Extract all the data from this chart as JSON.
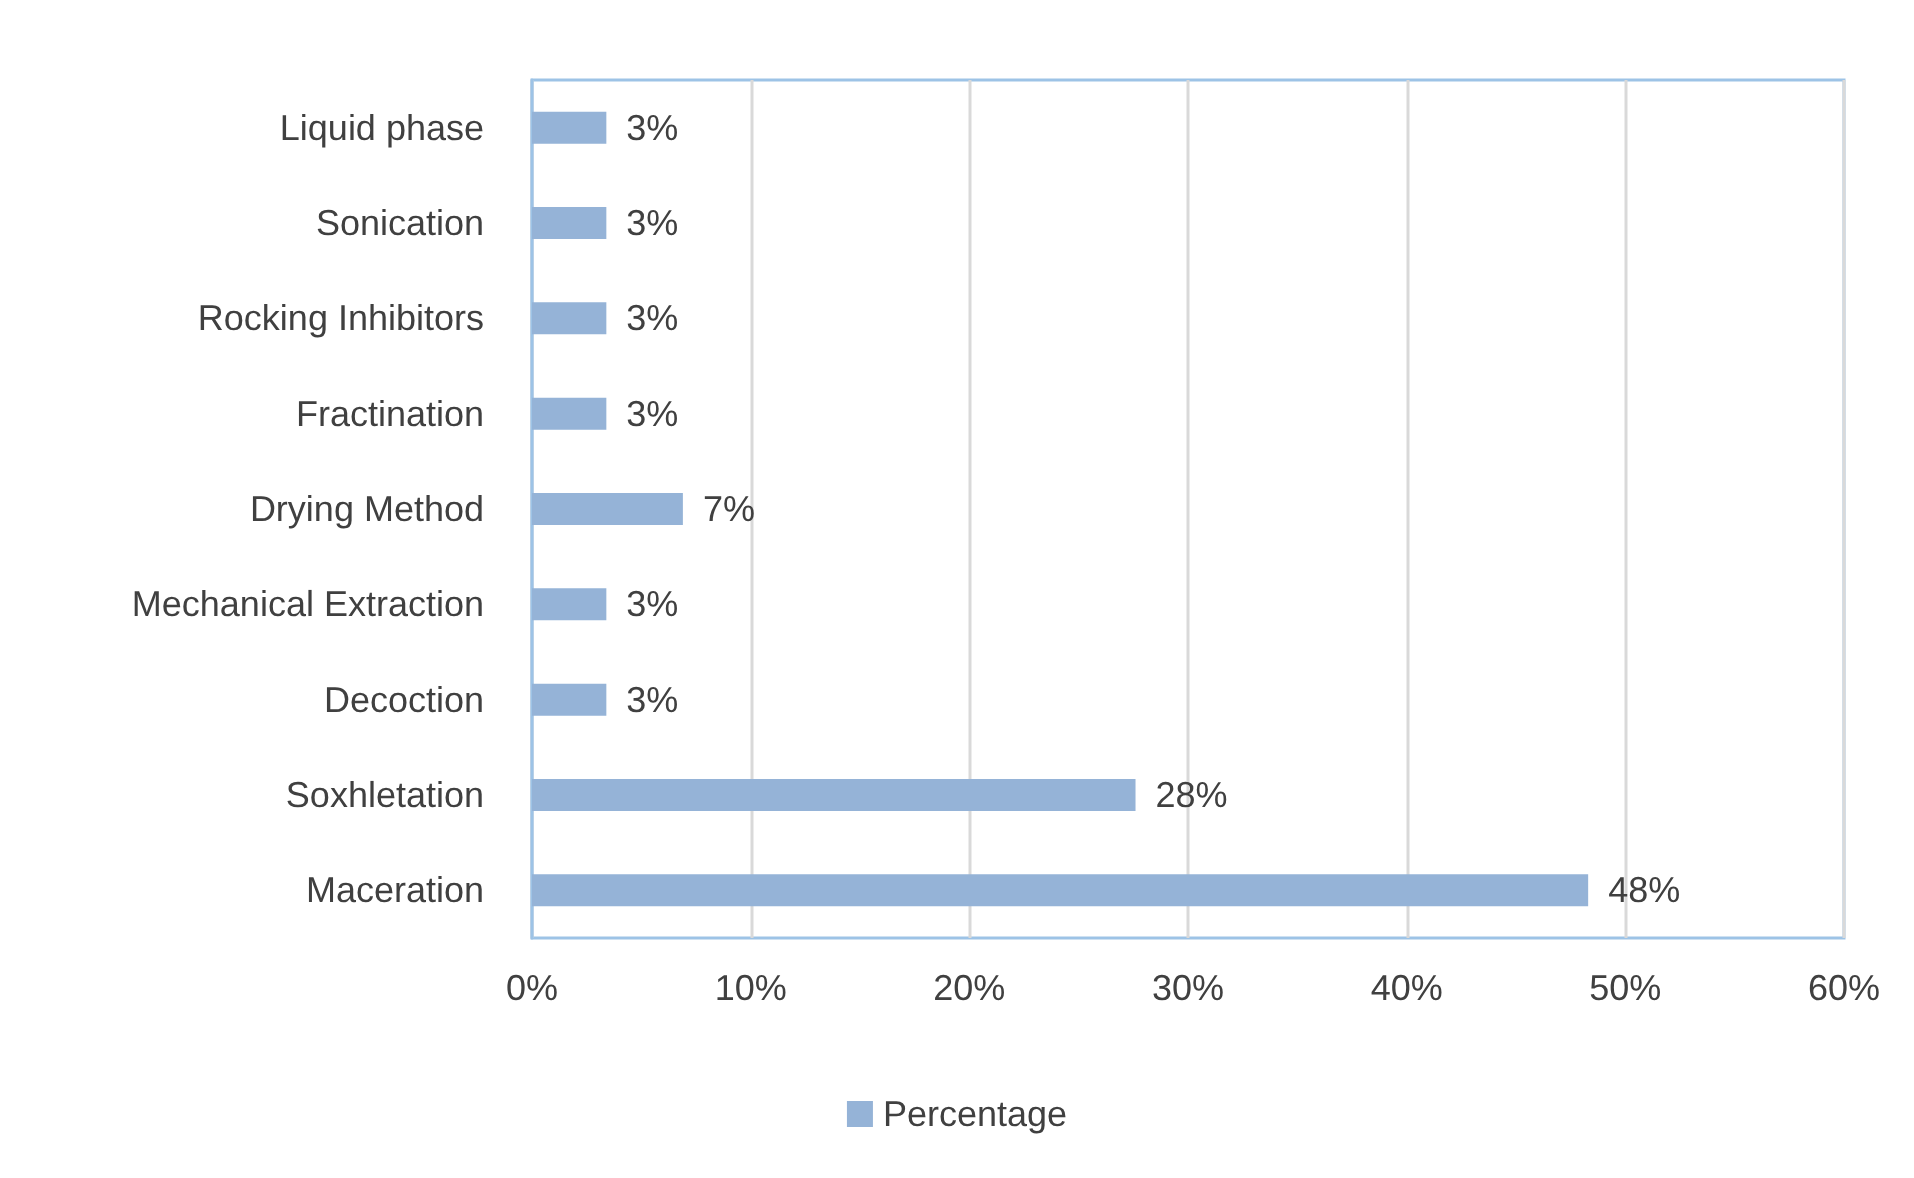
{
  "chart_data": {
    "type": "bar",
    "orientation": "horizontal",
    "categories": [
      "Liquid phase",
      "Sonication",
      "Rocking Inhibitors",
      "Fractination",
      "Drying Method",
      "Mechanical Extraction",
      "Decoction",
      "Soxhletation",
      "Maceration"
    ],
    "series": [
      {
        "name": "Percentage",
        "color": "#95b3d7",
        "values": [
          3.4,
          3.4,
          3.4,
          3.4,
          6.9,
          3.4,
          3.4,
          27.6,
          48.3
        ],
        "value_labels": [
          "3%",
          "3%",
          "3%",
          "3%",
          "7%",
          "3%",
          "3%",
          "28%",
          "48%"
        ]
      }
    ],
    "xlim": [
      0,
      60
    ],
    "xticks": [
      {
        "value": 0,
        "label": "0%"
      },
      {
        "value": 10,
        "label": "10%"
      },
      {
        "value": 20,
        "label": "20%"
      },
      {
        "value": 30,
        "label": "30%"
      },
      {
        "value": 40,
        "label": "40%"
      },
      {
        "value": 50,
        "label": "50%"
      },
      {
        "value": 60,
        "label": "60%"
      }
    ],
    "grid": "x",
    "legend": "bottom"
  }
}
